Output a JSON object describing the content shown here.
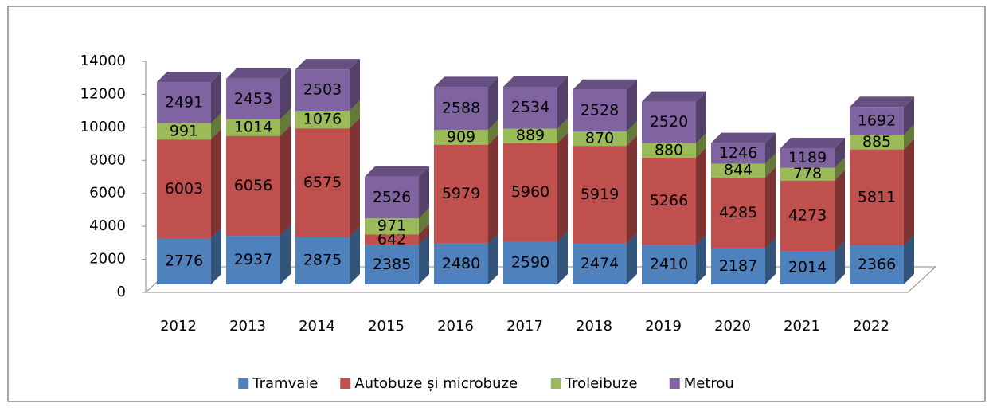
{
  "chart_data": {
    "type": "bar3d_stacked",
    "categories": [
      "2012",
      "2013",
      "2014",
      "2015",
      "2016",
      "2017",
      "2018",
      "2019",
      "2020",
      "2021",
      "2022"
    ],
    "series": [
      {
        "name": "Tramvaie",
        "color": "#4f81bd",
        "values": [
          2776,
          2937,
          2875,
          2385,
          2480,
          2590,
          2474,
          2410,
          2187,
          2014,
          2366
        ]
      },
      {
        "name": "Autobuze și microbuze",
        "color": "#c0504d",
        "values": [
          6003,
          6056,
          6575,
          642,
          5979,
          5960,
          5919,
          5266,
          4285,
          4273,
          5811
        ]
      },
      {
        "name": "Troleibuze",
        "color": "#9bbb59",
        "values": [
          991,
          1014,
          1076,
          971,
          909,
          889,
          870,
          880,
          844,
          778,
          885
        ]
      },
      {
        "name": "Metrou",
        "color": "#8064a2",
        "values": [
          2491,
          2453,
          2503,
          2526,
          2588,
          2534,
          2528,
          2520,
          1246,
          1189,
          1692
        ]
      }
    ],
    "ylim": [
      0,
      14000
    ],
    "yticks": [
      0,
      2000,
      4000,
      6000,
      8000,
      10000,
      12000,
      14000
    ],
    "legend": "bottom"
  }
}
